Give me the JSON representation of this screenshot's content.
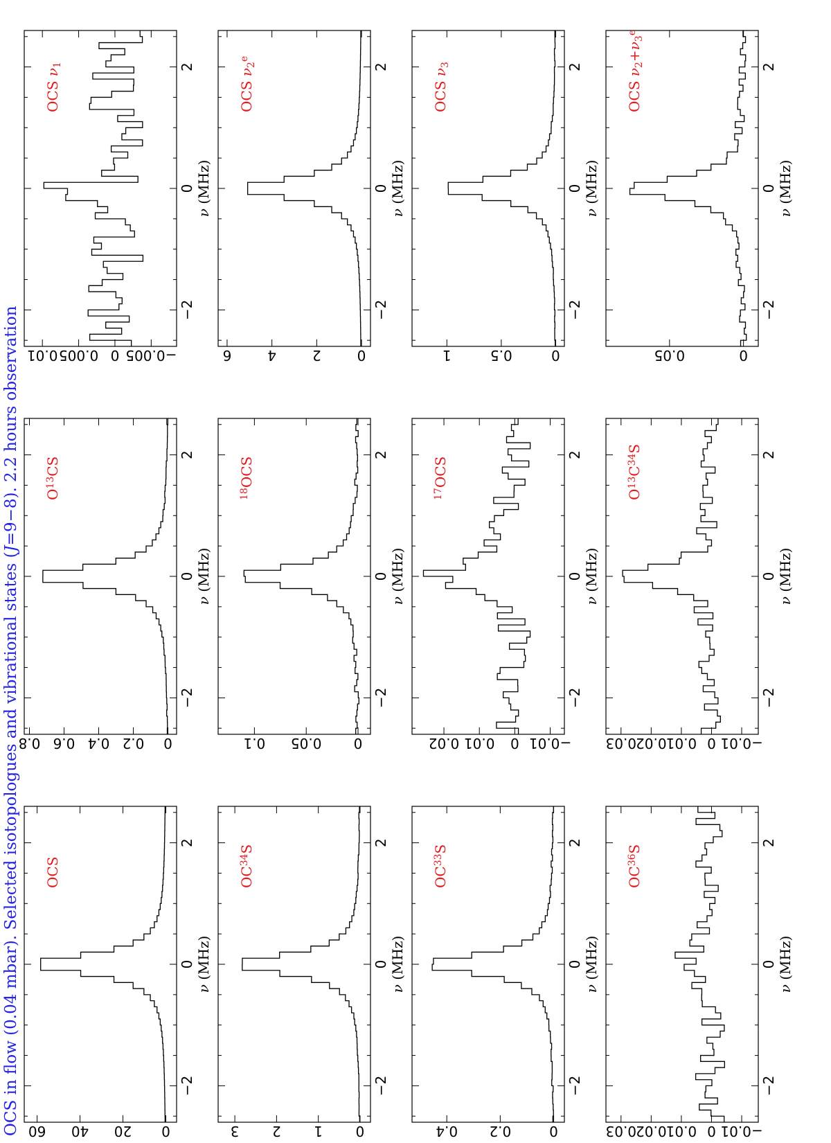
{
  "figure": {
    "title": "OCS in flow (0.04 mbar). Selected isotopologues and vibrational states (J=9−8). 2.2 hours observation",
    "title_color": "#2323e6",
    "panel_label_color": "#e31a1c",
    "orientation": "rotated 90° counter-clockwise"
  },
  "chart_data": [
    {
      "type": "line",
      "label": "OCS",
      "x_ticks": [
        "−2",
        "0",
        "2"
      ],
      "xlabel": "ν (MHz)",
      "y_ticks": [
        "0",
        "20",
        "40",
        "60"
      ],
      "xlim": [
        -2.6,
        2.6
      ],
      "ylim": [
        -5,
        66
      ],
      "kind": "peak",
      "peak": 62,
      "width": 0.2,
      "base": 0,
      "noise": 0,
      "seed": 1
    },
    {
      "type": "line",
      "label": "O13CS",
      "x_ticks": [
        "−2",
        "0",
        "2"
      ],
      "xlabel": "ν (MHz)",
      "y_ticks": [
        "0",
        "0.2",
        "0.4",
        "0.6",
        "0.8"
      ],
      "xlim": [
        -2.6,
        2.6
      ],
      "ylim": [
        -0.05,
        0.83
      ],
      "kind": "peak",
      "peak": 0.77,
      "width": 0.2,
      "base": 0,
      "noise": 0.003,
      "seed": 2
    },
    {
      "type": "line",
      "label": "OCS ν1",
      "x_ticks": [
        "−2",
        "0",
        "2"
      ],
      "xlabel": "ν (MHz)",
      "y_ticks": [
        "−0.005",
        "0",
        "0.005",
        "0.01"
      ],
      "xlim": [
        -2.6,
        2.6
      ],
      "ylim": [
        -0.0085,
        0.0125
      ],
      "kind": "noise",
      "peak": 0.009,
      "width": 0.15,
      "base": 0,
      "noise": 0.004,
      "seed": 3
    },
    {
      "type": "line",
      "label": "OC34S",
      "x_ticks": [
        "−2",
        "0",
        "2"
      ],
      "xlabel": "ν (MHz)",
      "y_ticks": [
        "0",
        "1",
        "2",
        "3"
      ],
      "xlim": [
        -2.6,
        2.6
      ],
      "ylim": [
        -0.25,
        3.4
      ],
      "kind": "peak",
      "peak": 3.0,
      "width": 0.2,
      "base": 0,
      "noise": 0.01,
      "seed": 4
    },
    {
      "type": "line",
      "label": "18OCS",
      "x_ticks": [
        "−2",
        "0",
        "2"
      ],
      "xlabel": "ν (MHz)",
      "y_ticks": [
        "0",
        "0.05",
        "0.1"
      ],
      "xlim": [
        -0.012,
        0.135
      ],
      "ylim": [
        -0.012,
        0.135
      ],
      "kind": "peak",
      "peak": 0.115,
      "width": 0.2,
      "base": 0,
      "noise": 0.002,
      "seed": 5
    },
    {
      "type": "line",
      "label": "OCS ν2e",
      "x_ticks": [
        "−2",
        "0",
        "2"
      ],
      "xlabel": "ν (MHz)",
      "y_ticks": [
        "0",
        "2",
        "4",
        "6"
      ],
      "xlim": [
        -2.6,
        2.6
      ],
      "ylim": [
        -0.4,
        6.4
      ],
      "kind": "peak",
      "peak": 5.4,
      "width": 0.2,
      "base": 0,
      "noise": 0,
      "seed": 6
    },
    {
      "type": "line",
      "label": "OC33S",
      "x_ticks": [
        "−2",
        "0",
        "2"
      ],
      "xlabel": "ν (MHz)",
      "y_ticks": [
        "0",
        "0.2",
        "0.4"
      ],
      "xlim": [
        -2.6,
        2.6
      ],
      "ylim": [
        -0.04,
        0.53
      ],
      "kind": "peak",
      "peak": 0.48,
      "width": 0.2,
      "base": 0,
      "noise": 0.003,
      "seed": 7
    },
    {
      "type": "line",
      "label": "17OCS",
      "x_ticks": [
        "−2",
        "0",
        "2"
      ],
      "xlabel": "ν (MHz)",
      "y_ticks": [
        "−0.01",
        "0",
        "0.01",
        "0.02"
      ],
      "xlim": [
        -2.6,
        2.6
      ],
      "ylim": [
        -0.014,
        0.029
      ],
      "kind": "peak",
      "peak": 0.023,
      "width": 0.25,
      "base": 0,
      "noise": 0.006,
      "seed": 8
    },
    {
      "type": "line",
      "label": "OCS ν3",
      "x_ticks": [
        "−2",
        "0",
        "2"
      ],
      "xlabel": "ν (MHz)",
      "y_ticks": [
        "0",
        "0.5",
        "1"
      ],
      "xlim": [
        -2.6,
        2.6
      ],
      "ylim": [
        -0.08,
        1.32
      ],
      "kind": "peak",
      "peak": 1.05,
      "width": 0.2,
      "base": 0,
      "noise": 0.004,
      "seed": 9
    },
    {
      "type": "line",
      "label": "OC36S",
      "x_ticks": [
        "−2",
        "0",
        "2"
      ],
      "xlabel": "ν (MHz)",
      "y_ticks": [
        "−0.01",
        "0",
        "0.01",
        "0.02",
        "0.03"
      ],
      "xlim": [
        -2.6,
        2.6
      ],
      "ylim": [
        -0.0155,
        0.035
      ],
      "kind": "peak",
      "peak": 0.01,
      "width": 0.3,
      "base": 0,
      "noise": 0.005,
      "seed": 10
    },
    {
      "type": "line",
      "label": "O13C34S",
      "x_ticks": [
        "−2",
        "0",
        "2"
      ],
      "xlabel": "ν (MHz)",
      "y_ticks": [
        "−0.01",
        "0",
        "0.01",
        "0.02",
        "0.03"
      ],
      "xlim": [
        -2.6,
        2.6
      ],
      "ylim": [
        -0.0155,
        0.035
      ],
      "kind": "peak",
      "peak": 0.03,
      "width": 0.2,
      "base": 0,
      "noise": 0.004,
      "seed": 11
    },
    {
      "type": "line",
      "label": "OCS ν2+ν3e",
      "x_ticks": [
        "−2",
        "0",
        "2"
      ],
      "xlabel": "ν (MHz)",
      "y_ticks": [
        "0",
        "0.05"
      ],
      "xlim": [
        -2.6,
        2.6
      ],
      "ylim": [
        -0.01,
        0.093
      ],
      "kind": "peak",
      "peak": 0.08,
      "width": 0.2,
      "base": 0,
      "noise": 0.003,
      "seed": 12
    }
  ]
}
